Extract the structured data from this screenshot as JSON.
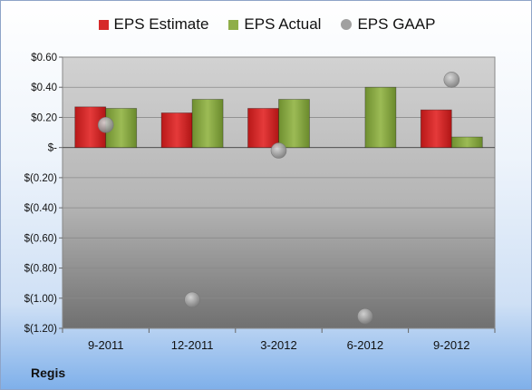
{
  "company": "Regis",
  "colors": {
    "estimate": "#d62a2a",
    "actual": "#8fae48",
    "gaap": "#a0a0a0"
  },
  "chart_data": {
    "type": "bar",
    "categories": [
      "9-2011",
      "12-2011",
      "3-2012",
      "6-2012",
      "9-2012"
    ],
    "series": [
      {
        "name": "EPS Estimate",
        "kind": "bar",
        "values": [
          0.27,
          0.23,
          0.26,
          null,
          0.25
        ]
      },
      {
        "name": "EPS Actual",
        "kind": "bar",
        "values": [
          0.26,
          0.32,
          0.32,
          0.4,
          0.07
        ]
      },
      {
        "name": "EPS GAAP",
        "kind": "scatter",
        "values": [
          0.15,
          -1.01,
          -0.02,
          -1.12,
          0.45
        ]
      }
    ],
    "ylim": [
      -1.2,
      0.6
    ],
    "ytick_values": [
      0.6,
      0.4,
      0.2,
      0,
      -0.2,
      -0.4,
      -0.6,
      -0.8,
      -1.0,
      -1.2
    ],
    "ytick_labels": [
      "$0.60",
      "$0.40",
      "$0.20",
      "$-",
      "$(0.20)",
      "$(0.40)",
      "$(0.60)",
      "$(0.80)",
      "$(1.00)",
      "$(1.20)"
    ],
    "legend_position": "top",
    "grid": true
  }
}
